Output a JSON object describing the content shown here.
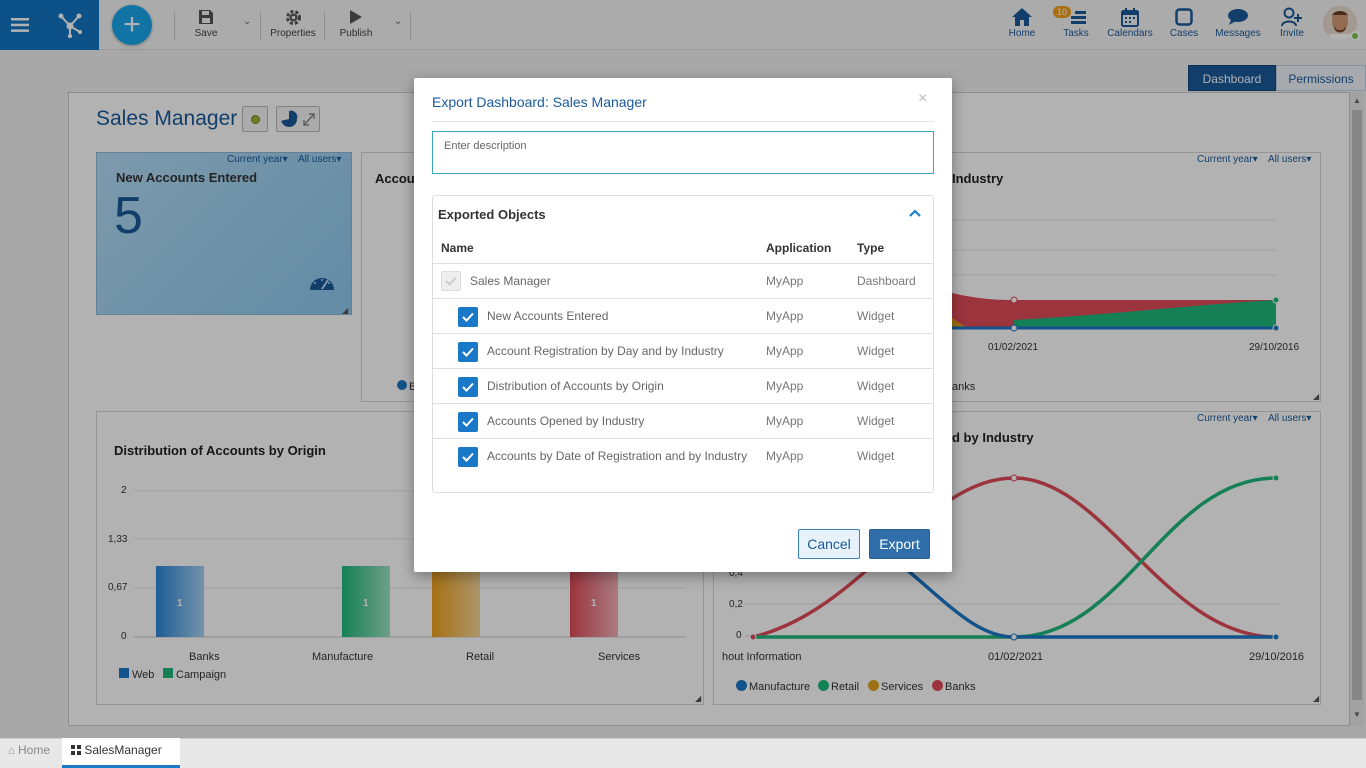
{
  "toolbar": {
    "save_label": "Save",
    "properties_label": "Properties",
    "publish_label": "Publish"
  },
  "nav": {
    "home_label": "Home",
    "tasks_label": "Tasks",
    "tasks_count": "10",
    "calendars_label": "Calendars",
    "cases_label": "Cases",
    "messages_label": "Messages",
    "invite_label": "Invite"
  },
  "view_tabs": {
    "dashboard": "Dashboard",
    "permissions": "Permissions"
  },
  "dashboard": {
    "title": "Sales Manager",
    "widget_new_accounts": {
      "title": "New Accounts Entered",
      "value": "5",
      "filter_period": "Current year",
      "filter_users": "All users"
    },
    "widget_registration": {
      "title_visible": "Accou",
      "legend_visible": "B"
    },
    "widget_industry": {
      "title_visible": "Industry",
      "filter_period": "Current year",
      "filter_users": "All users",
      "x_ticks": [
        "01/02/2021",
        "29/10/2016"
      ],
      "legend_visible": "anks"
    },
    "widget_distribution": {
      "title": "Distribution of Accounts by Origin",
      "y_ticks": [
        "2",
        "1,33",
        "0,67",
        "0"
      ],
      "categories": [
        "Banks",
        "Manufacture",
        "Retail",
        "Services"
      ],
      "bar_label": "1",
      "legend": [
        "Web",
        "Campaign"
      ]
    },
    "widget_date_industry": {
      "title_visible": "d by Industry",
      "filter_period": "Current year",
      "filter_users": "All users",
      "y_ticks": [
        "0,4",
        "0,2",
        "0"
      ],
      "x_ticks": [
        "hout Information",
        "01/02/2021",
        "29/10/2016"
      ],
      "legend": [
        "Manufacture",
        "Retail",
        "Services",
        "Banks"
      ]
    }
  },
  "modal": {
    "title": "Export Dashboard: Sales Manager",
    "close": "×",
    "description_placeholder": "Enter description",
    "panel_title": "Exported Objects",
    "columns": {
      "name": "Name",
      "application": "Application",
      "type": "Type"
    },
    "rows": [
      {
        "name": "Sales Manager",
        "application": "MyApp",
        "type": "Dashboard"
      },
      {
        "name": "New Accounts Entered",
        "application": "MyApp",
        "type": "Widget"
      },
      {
        "name": "Account Registration by Day and by Industry",
        "application": "MyApp",
        "type": "Widget"
      },
      {
        "name": "Distribution of Accounts by Origin",
        "application": "MyApp",
        "type": "Widget"
      },
      {
        "name": "Accounts Opened by Industry",
        "application": "MyApp",
        "type": "Widget"
      },
      {
        "name": "Accounts by Date of Registration and by Industry",
        "application": "MyApp",
        "type": "Widget"
      }
    ],
    "cancel_label": "Cancel",
    "export_label": "Export"
  },
  "bottom_tabs": {
    "home": "Home",
    "sales": "SalesManager"
  },
  "colors": {
    "primary": "#1474c4",
    "web": "#1a78c8",
    "campaign": "#1fb87a",
    "retail_bar": "#f0a21c",
    "services_bar": "#e04b5a",
    "manufacture": "#1a78c8",
    "retail": "#1fb87a",
    "services": "#e0a21c",
    "banks": "#e04b5a"
  }
}
